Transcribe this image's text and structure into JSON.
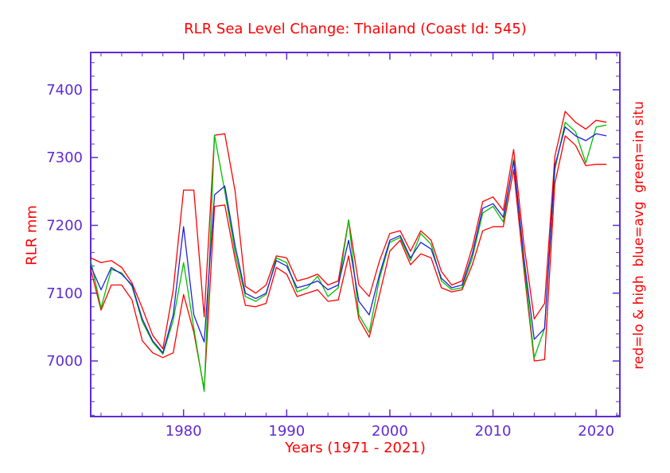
{
  "chart_data": {
    "type": "line",
    "title": "RLR Sea Level Change: Thailand (Coast Id: 545)",
    "xlabel": "Years (1971 - 2021)",
    "ylabel": "RLR mm",
    "right_label": "red=lo & high  blue=avg  green=in situ",
    "xlim": [
      1971,
      2022.3
    ],
    "ylim": [
      6918,
      7455
    ],
    "x_ticks": [
      1980,
      1990,
      2000,
      2010,
      2020
    ],
    "y_ticks": [
      7000,
      7100,
      7200,
      7300,
      7400
    ],
    "x_minor_step": 2,
    "y_minor_step": 20,
    "grid": false,
    "colors": {
      "axis": "#5e2bd6",
      "text_accent": "#ff0000",
      "background": "#ffffff"
    },
    "years": [
      1971,
      1972,
      1973,
      1974,
      1975,
      1976,
      1977,
      1978,
      1979,
      1980,
      1981,
      1982,
      1983,
      1984,
      1985,
      1986,
      1987,
      1988,
      1989,
      1990,
      1991,
      1992,
      1993,
      1994,
      1995,
      1996,
      1997,
      1998,
      1999,
      2000,
      2001,
      2002,
      2003,
      2004,
      2005,
      2006,
      2007,
      2008,
      2009,
      2010,
      2011,
      2012,
      2013,
      2014,
      2015,
      2016,
      2017,
      2018,
      2019,
      2020,
      2021
    ],
    "series": [
      {
        "name": "red-low",
        "legend": "red=lo",
        "color": "#ff0000",
        "values": [
          7135,
          7075,
          7112,
          7112,
          7090,
          7030,
          7012,
          7005,
          7012,
          7098,
          7042,
          6958,
          7228,
          7230,
          7150,
          7082,
          7080,
          7085,
          7138,
          7128,
          7095,
          7100,
          7105,
          7088,
          7090,
          7155,
          7062,
          7035,
          7098,
          7162,
          7178,
          7142,
          7158,
          7152,
          7108,
          7102,
          7105,
          7142,
          7192,
          7198,
          7198,
          7282,
          7135,
          7000,
          7002,
          7262,
          7332,
          7318,
          7288,
          7290,
          7290
        ]
      },
      {
        "name": "red-high",
        "legend": "red=high",
        "color": "#ff0000",
        "values": [
          7152,
          7145,
          7148,
          7138,
          7115,
          7078,
          7038,
          7018,
          7105,
          7252,
          7252,
          7065,
          7333,
          7335,
          7250,
          7110,
          7100,
          7112,
          7155,
          7152,
          7118,
          7122,
          7128,
          7112,
          7118,
          7208,
          7112,
          7095,
          7148,
          7188,
          7192,
          7162,
          7192,
          7178,
          7132,
          7112,
          7118,
          7168,
          7235,
          7242,
          7222,
          7312,
          7172,
          7062,
          7085,
          7302,
          7368,
          7352,
          7342,
          7355,
          7352
        ]
      },
      {
        "name": "green-in-situ",
        "legend": "green=in situ",
        "color": "#00c000",
        "values": [
          7148,
          7078,
          7135,
          7130,
          7110,
          7058,
          7028,
          7010,
          7060,
          7145,
          7048,
          6955,
          7333,
          7250,
          7160,
          7095,
          7088,
          7098,
          7152,
          7145,
          7102,
          7108,
          7125,
          7095,
          7108,
          7208,
          7068,
          7042,
          7122,
          7175,
          7182,
          7148,
          7188,
          7172,
          7118,
          7105,
          7108,
          7152,
          7218,
          7228,
          7205,
          7298,
          7145,
          7005,
          7048,
          7282,
          7352,
          7338,
          7292,
          7345,
          7348
        ]
      },
      {
        "name": "blue-avg",
        "legend": "blue=avg",
        "color": "#2020dd",
        "values": [
          7140,
          7105,
          7138,
          7128,
          7112,
          7062,
          7030,
          7012,
          7068,
          7198,
          7068,
          7028,
          7245,
          7258,
          7170,
          7100,
          7092,
          7100,
          7148,
          7140,
          7108,
          7112,
          7118,
          7105,
          7112,
          7178,
          7088,
          7068,
          7128,
          7178,
          7185,
          7152,
          7175,
          7165,
          7122,
          7108,
          7112,
          7158,
          7225,
          7232,
          7212,
          7295,
          7152,
          7032,
          7048,
          7288,
          7345,
          7332,
          7325,
          7335,
          7332
        ]
      }
    ]
  }
}
